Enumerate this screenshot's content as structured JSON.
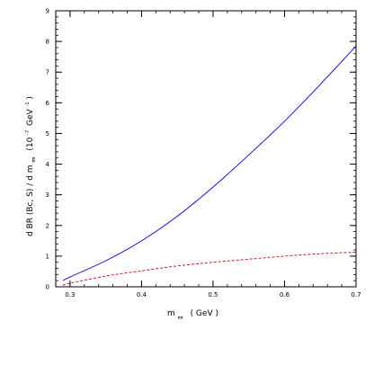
{
  "chart_data": {
    "type": "line",
    "xlim": [
      0.28,
      0.7
    ],
    "ylim": [
      0,
      9
    ],
    "x_ticks": [
      0.3,
      0.4,
      0.5,
      0.6,
      0.7
    ],
    "x_tick_labels": [
      "0.3",
      "0.4",
      "0.5",
      "0.6",
      "0.7"
    ],
    "y_ticks": [
      0,
      1,
      2,
      3,
      4,
      5,
      6,
      7,
      8,
      9
    ],
    "y_tick_labels": [
      "0",
      "1",
      "2",
      "3",
      "4",
      "5",
      "6",
      "7",
      "8",
      "9"
    ],
    "xlabel": {
      "main": "m",
      "subscript": "ππ",
      "suffix": "( GeV )"
    },
    "ylabel": {
      "prefix": "d BR (Bc, S) / d m",
      "subscript": "ππ",
      "unit_prefix": "(10",
      "unit_exp": "-7",
      "unit_mid": "GeV",
      "unit_exp2": "-1",
      "unit_suffix": ")"
    },
    "grid": false,
    "legend": "none",
    "series": [
      {
        "color": "#0000ff",
        "dash": "solid",
        "x": [
          0.29,
          0.3,
          0.35,
          0.4,
          0.45,
          0.5,
          0.55,
          0.6,
          0.65,
          0.7
        ],
        "y": [
          0.2,
          0.32,
          0.85,
          1.5,
          2.3,
          3.25,
          4.3,
          5.4,
          6.6,
          7.85
        ]
      },
      {
        "color": "#dd0000",
        "dash": "dashed",
        "x": [
          0.29,
          0.3,
          0.35,
          0.4,
          0.45,
          0.5,
          0.55,
          0.6,
          0.65,
          0.7
        ],
        "y": [
          0.05,
          0.12,
          0.35,
          0.52,
          0.68,
          0.8,
          0.9,
          1.0,
          1.08,
          1.13
        ]
      }
    ]
  }
}
